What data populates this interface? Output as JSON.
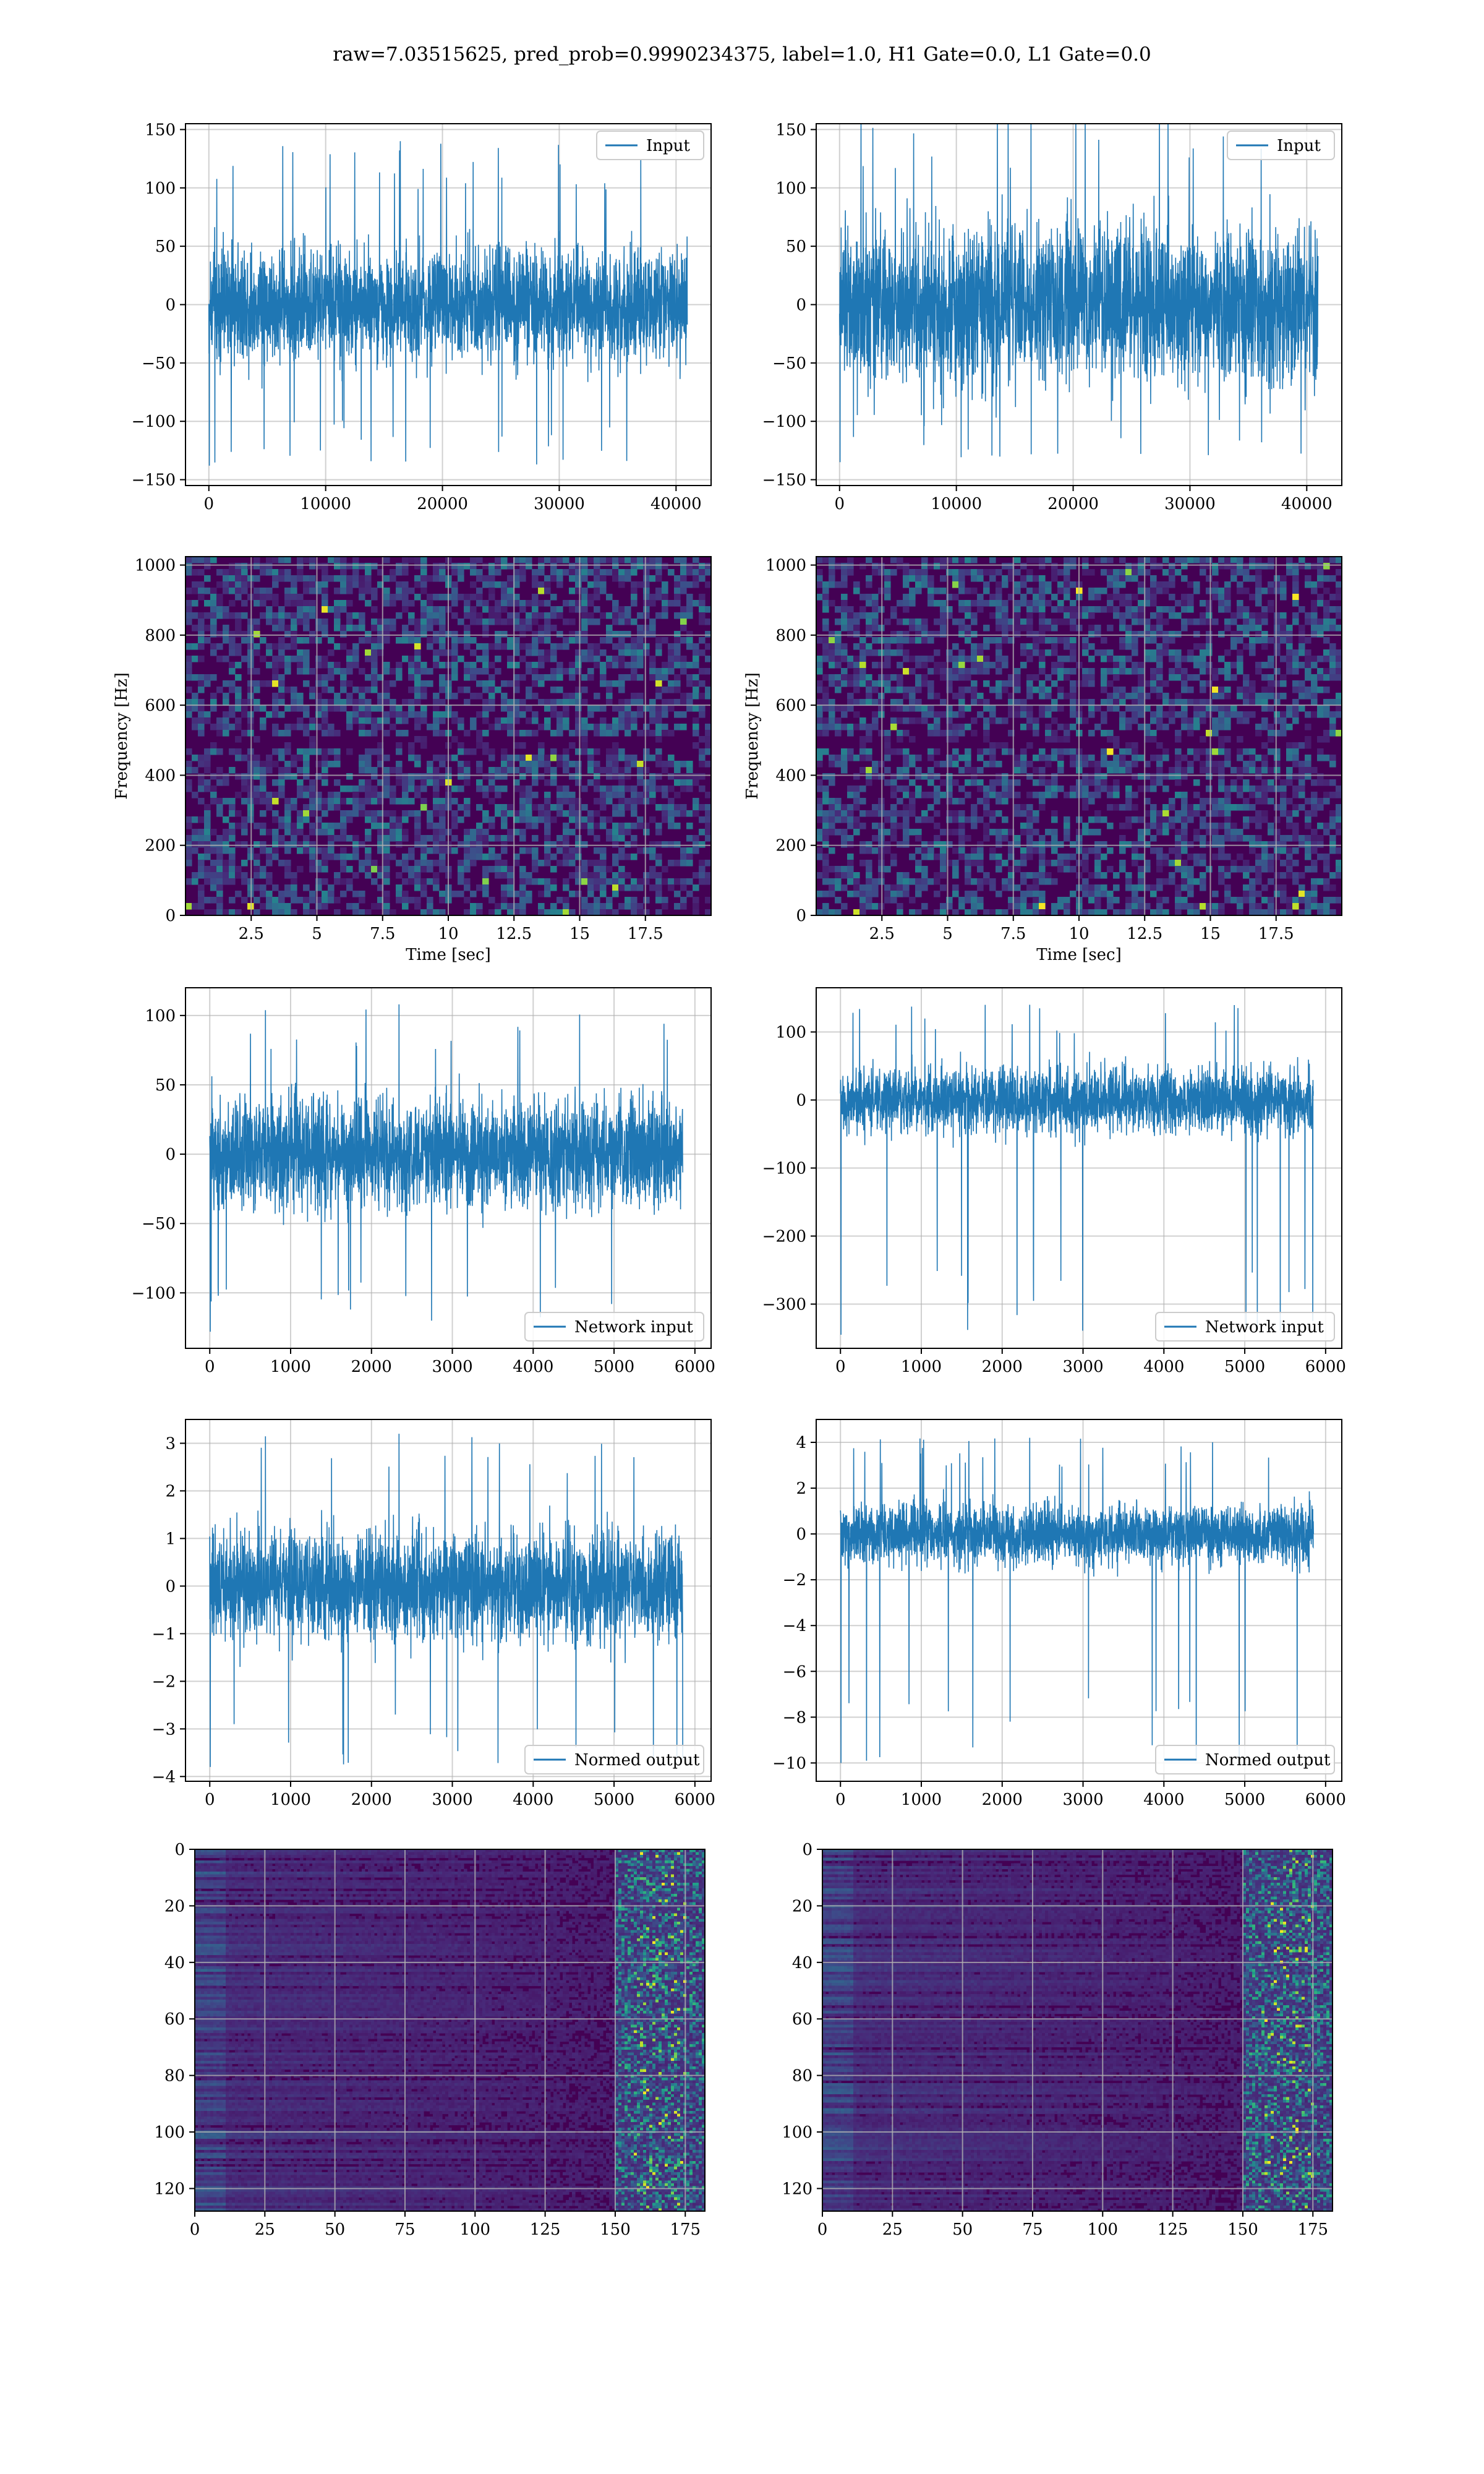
{
  "title": "raw=7.03515625, pred_prob=0.9990234375, label=1.0, H1 Gate=0.0, L1 Gate=0.0",
  "colors": {
    "line": "#1f77b4",
    "grid": "#b0b0b0",
    "viridis_dark": "#440154",
    "viridis_bright": "#fde725"
  },
  "chart_data": [
    {
      "id": "h1-input",
      "type": "line",
      "series": [
        {
          "name": "Input"
        }
      ],
      "legend": "top-right",
      "xlim": [
        -2000,
        43000
      ],
      "ylim": [
        -155,
        155
      ],
      "xticks": [
        0,
        10000,
        20000,
        30000,
        40000
      ],
      "yticks": [
        -150,
        -100,
        -50,
        0,
        50,
        100,
        150
      ],
      "x_range": [
        0,
        40960
      ],
      "amplitude_mean": 55,
      "amplitude_max": 140,
      "amplitude_min": -138,
      "grid": true
    },
    {
      "id": "l1-input",
      "type": "line",
      "series": [
        {
          "name": "Input"
        }
      ],
      "legend": "top-right",
      "xlim": [
        -2000,
        43000
      ],
      "ylim": [
        -155,
        155
      ],
      "xticks": [
        0,
        10000,
        20000,
        30000,
        40000
      ],
      "yticks": [
        -150,
        -100,
        -50,
        0,
        50,
        100,
        150
      ],
      "x_range": [
        0,
        40960
      ],
      "amplitude_mean": 75,
      "amplitude_max": 165,
      "amplitude_min": -135,
      "grid": true
    },
    {
      "id": "h1-spectrogram",
      "type": "heatmap",
      "xlabel": "Time [sec]",
      "ylabel": "Frequency [Hz]",
      "xlim": [
        0,
        20
      ],
      "ylim": [
        0,
        1024
      ],
      "xticks": [
        2.5,
        5.0,
        7.5,
        10.0,
        12.5,
        15.0,
        17.5
      ],
      "yticks": [
        0,
        200,
        400,
        600,
        800,
        1000
      ],
      "colormap": "viridis",
      "grid": true
    },
    {
      "id": "l1-spectrogram",
      "type": "heatmap",
      "xlabel": "Time [sec]",
      "ylabel": "Frequency [Hz]",
      "xlim": [
        0,
        20
      ],
      "ylim": [
        0,
        1024
      ],
      "xticks": [
        2.5,
        5.0,
        7.5,
        10.0,
        12.5,
        15.0,
        17.5
      ],
      "yticks": [
        0,
        200,
        400,
        600,
        800,
        1000
      ],
      "colormap": "viridis",
      "grid": true
    },
    {
      "id": "h1-network-input",
      "type": "line",
      "series": [
        {
          "name": "Network input"
        }
      ],
      "legend": "bottom-right",
      "xlim": [
        -300,
        6200
      ],
      "ylim": [
        -140,
        120
      ],
      "xticks": [
        0,
        1000,
        2000,
        3000,
        4000,
        5000,
        6000
      ],
      "yticks": [
        -100,
        -50,
        0,
        50,
        100
      ],
      "x_range": [
        0,
        5850
      ],
      "amplitude_mean": 45,
      "amplitude_max": 108,
      "amplitude_min": -128,
      "grid": true
    },
    {
      "id": "l1-network-input",
      "type": "line",
      "series": [
        {
          "name": "Network input"
        }
      ],
      "legend": "bottom-right",
      "xlim": [
        -300,
        6200
      ],
      "ylim": [
        -365,
        165
      ],
      "xticks": [
        0,
        1000,
        2000,
        3000,
        4000,
        5000,
        6000
      ],
      "yticks": [
        -300,
        -200,
        -100,
        0,
        100
      ],
      "x_range": [
        0,
        5850
      ],
      "amplitude_mean": 55,
      "amplitude_max": 140,
      "amplitude_min": -345,
      "grid": true
    },
    {
      "id": "h1-normed-output",
      "type": "line",
      "series": [
        {
          "name": "Normed output"
        }
      ],
      "legend": "bottom-right",
      "xlim": [
        -300,
        6200
      ],
      "ylim": [
        -4.1,
        3.5
      ],
      "xticks": [
        0,
        1000,
        2000,
        3000,
        4000,
        5000,
        6000
      ],
      "yticks": [
        -4,
        -3,
        -2,
        -1,
        0,
        1,
        2,
        3
      ],
      "x_range": [
        0,
        5850
      ],
      "amplitude_mean": 1.3,
      "amplitude_max": 3.2,
      "amplitude_min": -3.8,
      "grid": true
    },
    {
      "id": "l1-normed-output",
      "type": "line",
      "series": [
        {
          "name": "Normed output"
        }
      ],
      "legend": "bottom-right",
      "xlim": [
        -300,
        6200
      ],
      "ylim": [
        -10.8,
        5
      ],
      "xticks": [
        0,
        1000,
        2000,
        3000,
        4000,
        5000,
        6000
      ],
      "yticks": [
        -10,
        -8,
        -6,
        -4,
        -2,
        0,
        2,
        4
      ],
      "x_range": [
        0,
        5850
      ],
      "amplitude_mean": 1.5,
      "amplitude_max": 4.2,
      "amplitude_min": -10.0,
      "grid": true
    },
    {
      "id": "h1-activation-map",
      "type": "heatmap",
      "xlim": [
        0,
        182
      ],
      "ylim": [
        128,
        0
      ],
      "xticks": [
        0,
        25,
        50,
        75,
        100,
        125,
        150,
        175
      ],
      "yticks": [
        0,
        20,
        40,
        60,
        80,
        100,
        120
      ],
      "colormap": "viridis",
      "bright_region_x": [
        150,
        182
      ],
      "grid": true
    },
    {
      "id": "l1-activation-map",
      "type": "heatmap",
      "xlim": [
        0,
        182
      ],
      "ylim": [
        128,
        0
      ],
      "xticks": [
        0,
        25,
        50,
        75,
        100,
        125,
        150,
        175
      ],
      "yticks": [
        0,
        20,
        40,
        60,
        80,
        100,
        120
      ],
      "colormap": "viridis",
      "bright_region_x": [
        150,
        182
      ],
      "grid": true
    }
  ]
}
